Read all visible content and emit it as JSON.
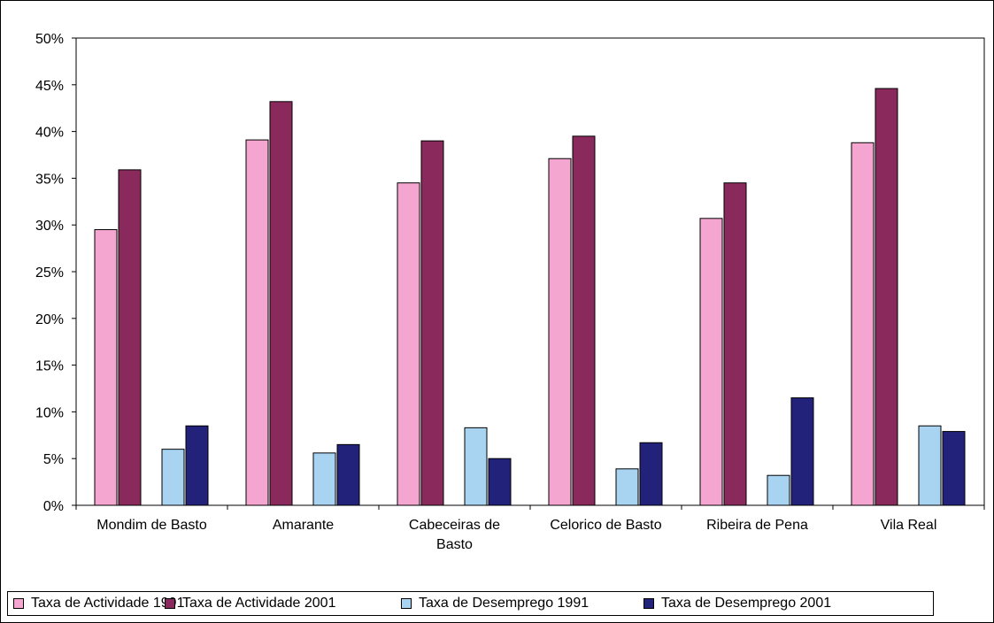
{
  "chart_data": {
    "type": "bar",
    "categories": [
      [
        "Mondim de Basto"
      ],
      [
        "Amarante"
      ],
      [
        "Cabeceiras de",
        "Basto"
      ],
      [
        "Celorico de Basto"
      ],
      [
        "Ribeira de Pena"
      ],
      [
        "Vila Real"
      ]
    ],
    "series": [
      {
        "name": "Taxa de Actividade 1991",
        "color": "#f4a6d0",
        "values": [
          29.5,
          39.1,
          34.5,
          37.1,
          30.7,
          38.8
        ]
      },
      {
        "name": "Taxa de Actividade 2001",
        "color": "#8a2a5c",
        "values": [
          35.9,
          43.2,
          39.0,
          39.5,
          34.5,
          44.6
        ]
      },
      {
        "name": "Taxa de Desemprego 1991",
        "color": "#a8d4f2",
        "values": [
          6.0,
          5.6,
          8.3,
          3.9,
          3.2,
          8.5
        ]
      },
      {
        "name": "Taxa de Desemprego 2001",
        "color": "#22227a",
        "values": [
          8.5,
          6.5,
          5.0,
          6.7,
          11.5,
          7.9
        ]
      }
    ],
    "y_ticks": [
      "0%",
      "5%",
      "10%",
      "15%",
      "20%",
      "25%",
      "30%",
      "35%",
      "40%",
      "45%",
      "50%"
    ],
    "ylim": [
      0,
      50
    ],
    "legend_position": "bottom",
    "grid": false
  }
}
